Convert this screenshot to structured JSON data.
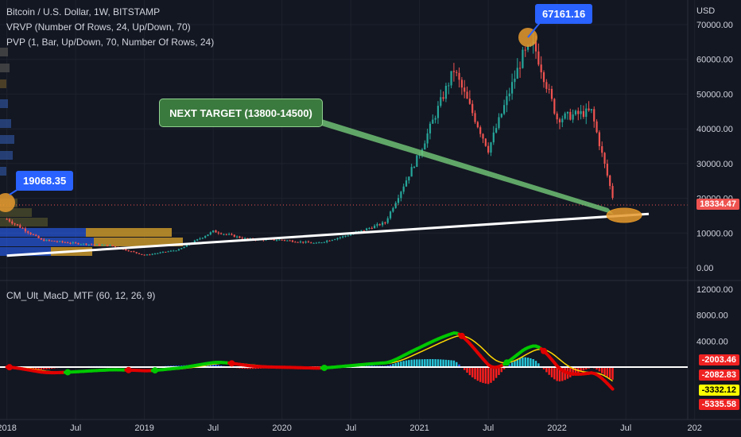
{
  "header": {
    "symbol_line": "Bitcoin / U.S. Dollar, 1W, BITSTAMP",
    "vrvp_line": "VRVP (Number Of Rows, 24, Up/Down, 70)",
    "pvp_line": "PVP (1, Bar, Up/Down, 70, Number Of Rows, 24)",
    "currency": "USD"
  },
  "annotations": {
    "high_label": "67161.16",
    "low_label": "19068.35",
    "target_label": "NEXT TARGET (13800-14500)"
  },
  "price_axis": {
    "ticks": [
      "70000.00",
      "60000.00",
      "50000.00",
      "40000.00",
      "30000.00",
      "20000.00",
      "10000.00",
      "0.00"
    ],
    "current_price": "18334.47"
  },
  "indicator": {
    "title": "CM_Ult_MacD_MTF (60, 12, 26, 9)",
    "ticks": [
      "12000.00",
      "8000.00",
      "4000.00"
    ],
    "values": [
      "-2003.46",
      "-2082.83",
      "-3332.12",
      "-5335.58"
    ]
  },
  "time_axis": {
    "labels": [
      "2018",
      "Jul",
      "2019",
      "Jul",
      "2020",
      "Jul",
      "2021",
      "Jul",
      "2022",
      "Jul",
      "202"
    ]
  },
  "colors": {
    "background": "#131722",
    "up": "#26a69a",
    "down": "#ef5350",
    "macd": "#00c800",
    "signal": "#ffd700",
    "accent": "#2962ff"
  },
  "chart_data": {
    "type": "line",
    "title": "Bitcoin / U.S. Dollar, 1W, BITSTAMP",
    "ylabel": "USD",
    "ylim": [
      0,
      75000
    ],
    "x": [
      "2018-01",
      "2018-04",
      "2018-07",
      "2018-10",
      "2019-01",
      "2019-04",
      "2019-07",
      "2019-10",
      "2020-01",
      "2020-04",
      "2020-07",
      "2020-10",
      "2021-01",
      "2021-04",
      "2021-07",
      "2021-10",
      "2021-11",
      "2022-01",
      "2022-04",
      "2022-06"
    ],
    "series": [
      {
        "values": [
          14000,
          8000,
          7000,
          6400,
          3600,
          5200,
          10500,
          8200,
          8000,
          7000,
          9600,
          13000,
          33000,
          57000,
          34000,
          61000,
          64000,
          43000,
          45000,
          18334
        ]
      }
    ],
    "trendline": {
      "from": [
        "2018-01",
        3500
      ],
      "to": [
        "2022-09",
        15500
      ]
    }
  }
}
